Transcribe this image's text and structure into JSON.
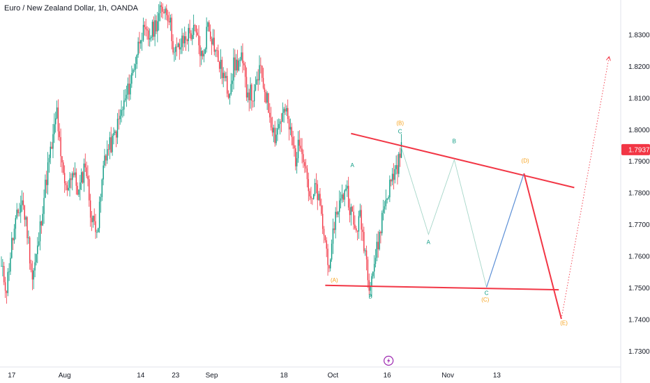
{
  "header": {
    "symbol_title": "Euro / New Zealand Dollar, 1h, OANDA"
  },
  "colors": {
    "candle_up": "#089981",
    "candle_down": "#f23645",
    "trendline": "#f23645",
    "wave_green": "#089981",
    "wave_orange": "#f7a21b",
    "projection_thin": "#a5d6c8",
    "projection_blue": "#5b8fd6",
    "projection_red": "#f23645",
    "price_badge_bg": "#f23645",
    "event_icon": "#9c27b0"
  },
  "icons": {
    "event_marker": "lightning-icon"
  },
  "chart_data": {
    "type": "candlestick",
    "title": "Euro / New Zealand Dollar, 1h, OANDA",
    "y_axis": {
      "ticks": [
        "1.83000",
        "1.82000",
        "1.81000",
        "1.80000",
        "1.79000",
        "1.78000",
        "1.77000",
        "1.76000",
        "1.75000",
        "1.74000",
        "1.73000"
      ],
      "tick_values": [
        1.83,
        1.82,
        1.81,
        1.8,
        1.79,
        1.78,
        1.77,
        1.76,
        1.75,
        1.74,
        1.73
      ],
      "range": [
        1.725,
        1.841
      ],
      "current_price_label": "1.79370",
      "current_price": 1.7937
    },
    "x_axis": {
      "ticks": [
        "17",
        "Aug",
        "14",
        "23",
        "Sep",
        "18",
        "Oct",
        "16",
        "Nov",
        "13"
      ],
      "tick_index": [
        8,
        49,
        108,
        135,
        163,
        219,
        257,
        299,
        346,
        384
      ]
    },
    "price_path": [
      [
        0,
        1.756
      ],
      [
        4,
        1.75
      ],
      [
        8,
        1.764
      ],
      [
        12,
        1.772
      ],
      [
        16,
        1.778
      ],
      [
        20,
        1.768
      ],
      [
        24,
        1.753
      ],
      [
        28,
        1.762
      ],
      [
        32,
        1.776
      ],
      [
        36,
        1.788
      ],
      [
        40,
        1.797
      ],
      [
        43,
        1.806
      ],
      [
        46,
        1.79
      ],
      [
        50,
        1.781
      ],
      [
        55,
        1.787
      ],
      [
        60,
        1.78
      ],
      [
        65,
        1.79
      ],
      [
        70,
        1.771
      ],
      [
        75,
        1.77
      ],
      [
        80,
        1.792
      ],
      [
        86,
        1.796
      ],
      [
        92,
        1.804
      ],
      [
        98,
        1.812
      ],
      [
        104,
        1.822
      ],
      [
        108,
        1.831
      ],
      [
        114,
        1.829
      ],
      [
        118,
        1.832
      ],
      [
        122,
        1.836
      ],
      [
        126,
        1.839
      ],
      [
        130,
        1.836
      ],
      [
        134,
        1.824
      ],
      [
        138,
        1.826
      ],
      [
        144,
        1.83
      ],
      [
        150,
        1.831
      ],
      [
        156,
        1.822
      ],
      [
        160,
        1.834
      ],
      [
        164,
        1.828
      ],
      [
        168,
        1.822
      ],
      [
        172,
        1.817
      ],
      [
        176,
        1.812
      ],
      [
        180,
        1.82
      ],
      [
        186,
        1.822
      ],
      [
        190,
        1.813
      ],
      [
        196,
        1.81
      ],
      [
        200,
        1.819
      ],
      [
        204,
        1.813
      ],
      [
        208,
        1.805
      ],
      [
        212,
        1.798
      ],
      [
        216,
        1.803
      ],
      [
        220,
        1.806
      ],
      [
        224,
        1.799
      ],
      [
        228,
        1.791
      ],
      [
        232,
        1.797
      ],
      [
        236,
        1.788
      ],
      [
        240,
        1.776
      ],
      [
        244,
        1.782
      ],
      [
        248,
        1.772
      ],
      [
        252,
        1.762
      ],
      [
        255,
        1.756
      ],
      [
        258,
        1.771
      ],
      [
        261,
        1.776
      ],
      [
        264,
        1.778
      ],
      [
        267,
        1.783
      ],
      [
        270,
        1.776
      ],
      [
        274,
        1.768
      ],
      [
        278,
        1.772
      ],
      [
        282,
        1.762
      ],
      [
        285,
        1.752
      ],
      [
        288,
        1.756
      ],
      [
        292,
        1.764
      ],
      [
        296,
        1.775
      ],
      [
        300,
        1.781
      ],
      [
        304,
        1.786
      ],
      [
        308,
        1.79
      ],
      [
        310,
        1.795
      ]
    ],
    "trendlines": [
      {
        "name": "upper",
        "from": [
          271,
          1.7988
        ],
        "to": [
          444,
          1.7817
        ]
      },
      {
        "name": "lower",
        "from": [
          251,
          1.7508
        ],
        "to": [
          432,
          1.7494
        ]
      }
    ],
    "projections": [
      {
        "style": "thin",
        "points": [
          [
            310,
            1.7945
          ],
          [
            331,
            1.7669
          ],
          [
            351,
            1.7905
          ],
          [
            376,
            1.7502
          ]
        ]
      },
      {
        "style": "blue",
        "points": [
          [
            376,
            1.7502
          ],
          [
            405,
            1.7862
          ]
        ]
      },
      {
        "style": "red",
        "points": [
          [
            405,
            1.7862
          ],
          [
            434,
            1.7402
          ]
        ]
      },
      {
        "style": "dotted",
        "points": [
          [
            434,
            1.7402
          ],
          [
            471,
            1.8231
          ]
        ]
      }
    ],
    "wave_labels": [
      {
        "text": "(B)",
        "x": 309,
        "y": 1.8015,
        "color": "orange"
      },
      {
        "text": "C",
        "x": 309,
        "y": 1.7988,
        "color": "green"
      },
      {
        "text": "A",
        "x": 272,
        "y": 1.7882,
        "color": "green"
      },
      {
        "text": "B",
        "x": 351,
        "y": 1.7958,
        "color": "green"
      },
      {
        "text": "(D)",
        "x": 406,
        "y": 1.7896,
        "color": "orange"
      },
      {
        "text": "A",
        "x": 331,
        "y": 1.7638,
        "color": "green"
      },
      {
        "text": "(A)",
        "x": 258,
        "y": 1.7518,
        "color": "orange"
      },
      {
        "text": "B",
        "x": 286,
        "y": 1.7467,
        "color": "green"
      },
      {
        "text": "C",
        "x": 376,
        "y": 1.7478,
        "color": "green"
      },
      {
        "text": "(C)",
        "x": 375,
        "y": 1.7457,
        "color": "orange"
      },
      {
        "text": "(E)",
        "x": 436,
        "y": 1.7383,
        "color": "orange"
      }
    ]
  }
}
